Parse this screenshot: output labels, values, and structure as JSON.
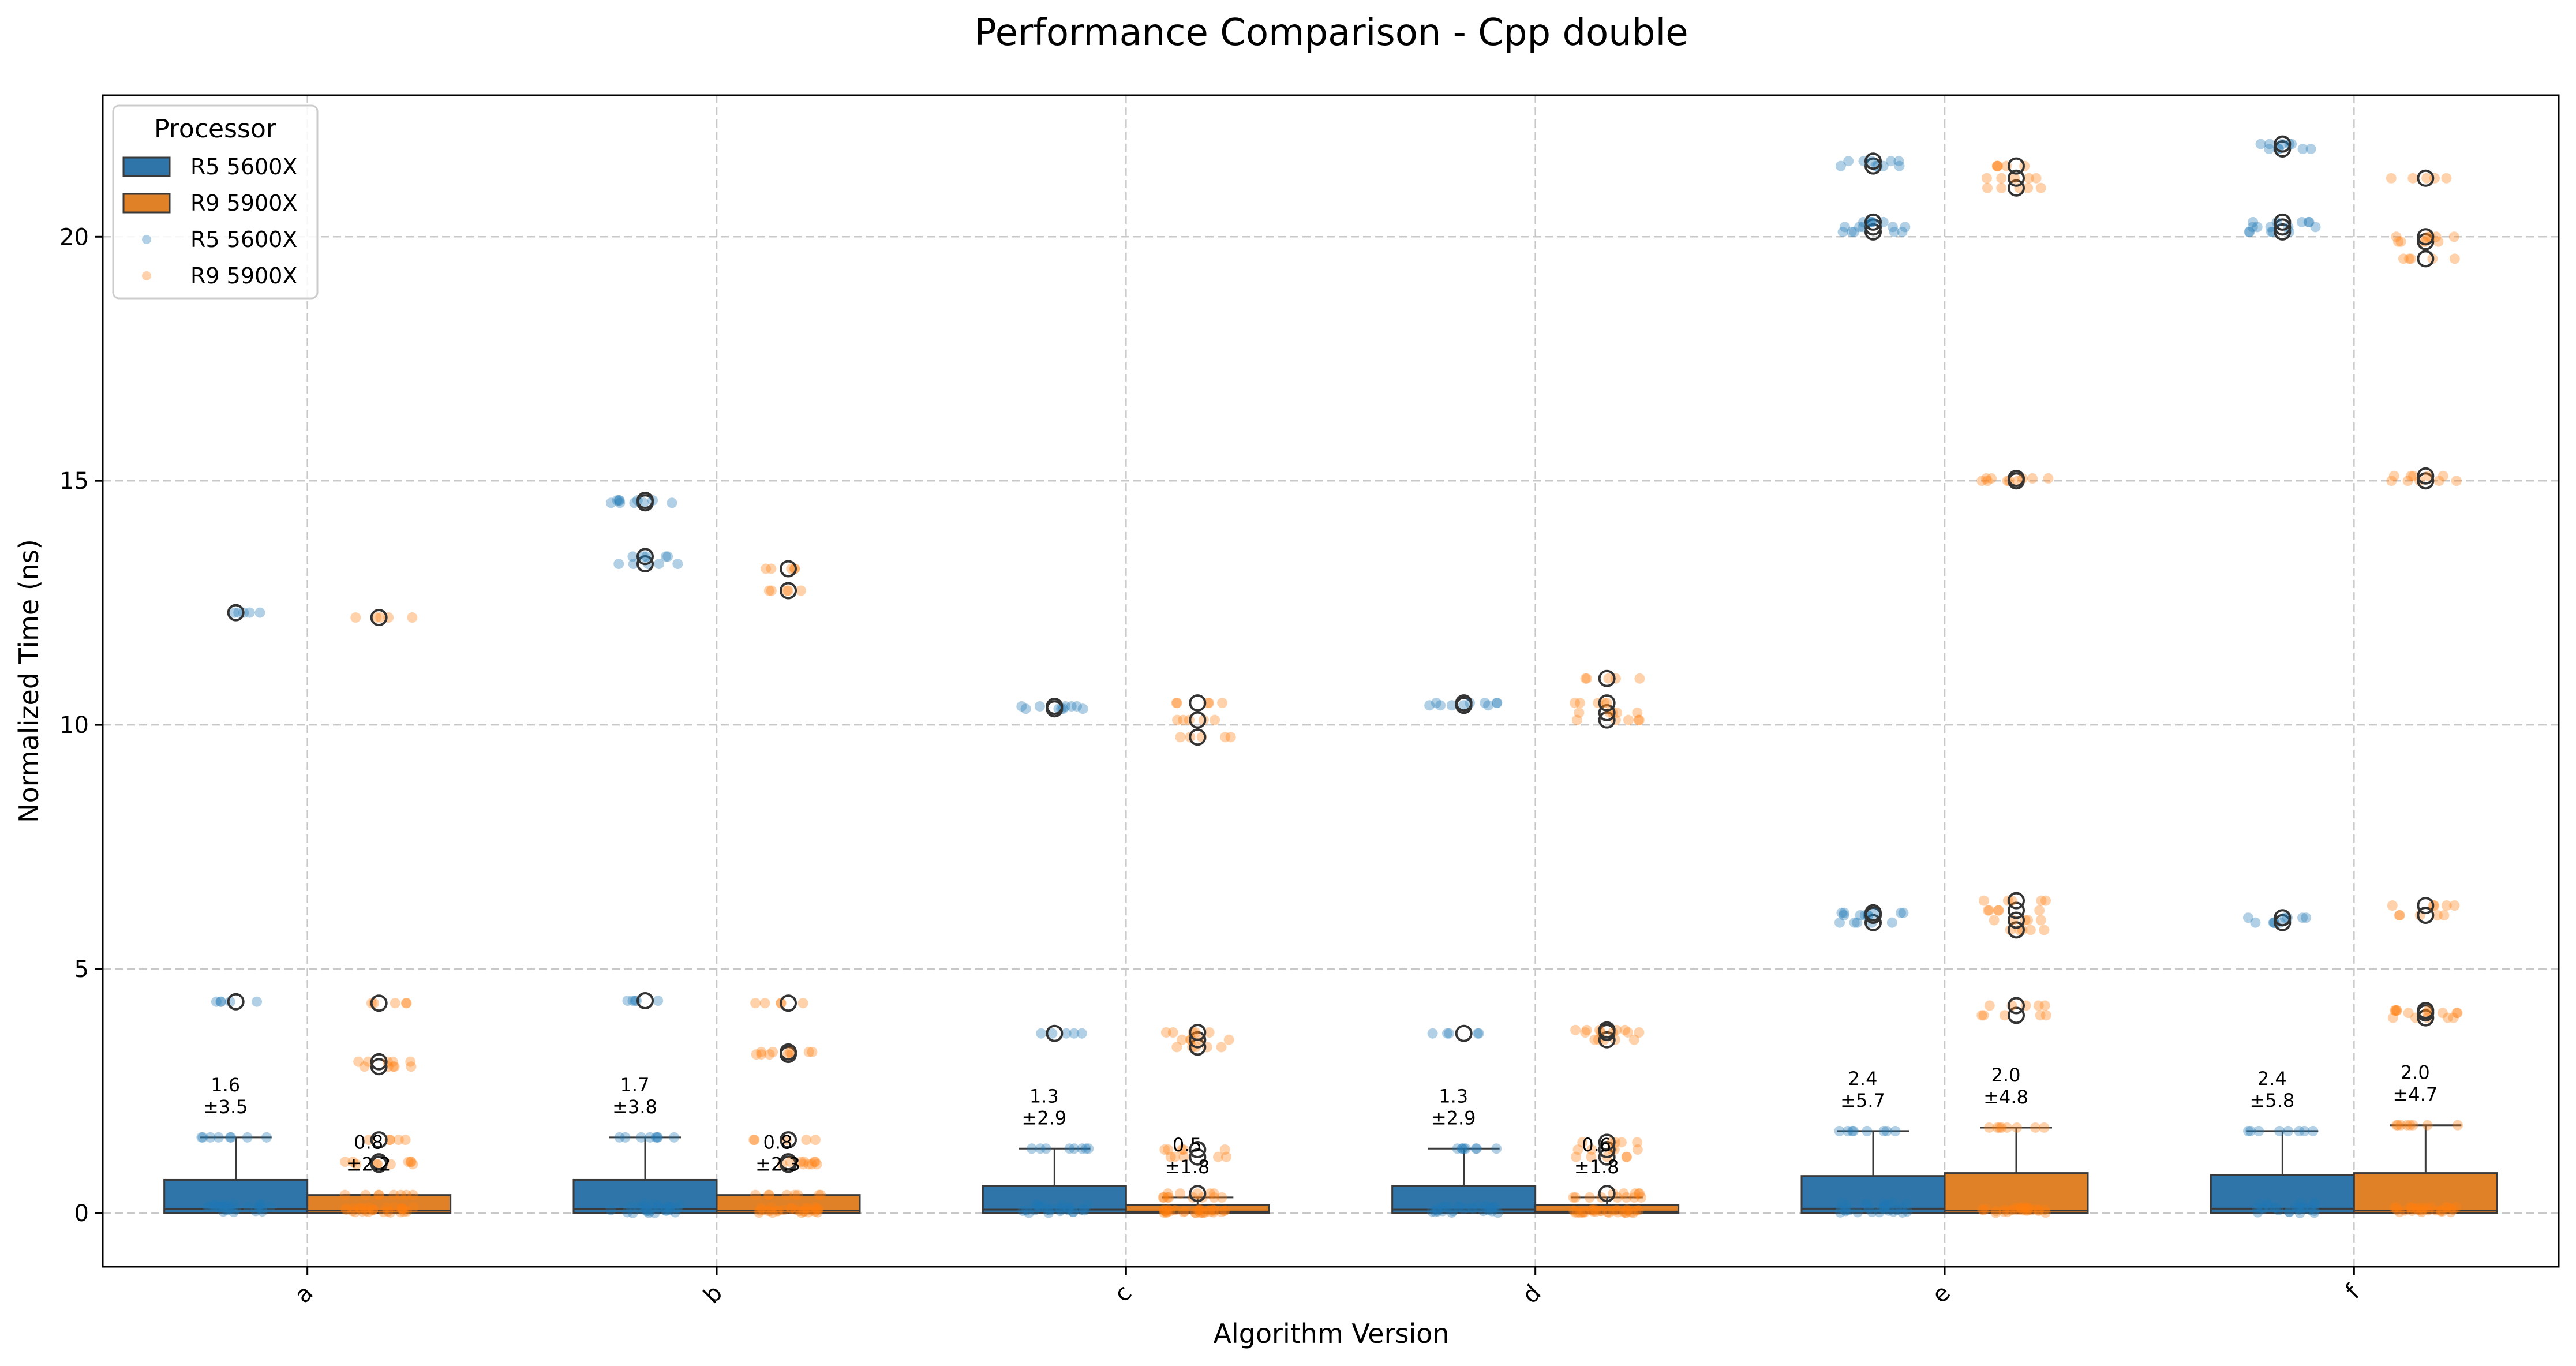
{
  "chart_data": {
    "type": "box",
    "title": "Performance Comparison - Cpp double",
    "xlabel": "Algorithm Version",
    "ylabel": "Normalized Time (ns)",
    "categories": [
      "a",
      "b",
      "c",
      "d",
      "e",
      "f"
    ],
    "ylim": [
      -1.1,
      22.9
    ],
    "yticks": [
      0,
      5,
      10,
      15,
      20
    ],
    "grid": true,
    "legend": {
      "title": "Processor",
      "placement": "top-left",
      "entries": [
        {
          "label": "R5 5600X",
          "kind": "box"
        },
        {
          "label": "R9 5900X",
          "kind": "box"
        },
        {
          "label": "R5 5600X",
          "kind": "point"
        },
        {
          "label": "R9 5900X",
          "kind": "point"
        }
      ]
    },
    "colors": {
      "R5 5600X": "#2f75a9",
      "R9 5900X": "#e08127",
      "R5 5600X_points": "#1f77b4",
      "R9 5900X_points": "#ff7f0e"
    },
    "series": [
      {
        "name": "R5 5600X",
        "boxes": [
          {
            "q1": 0.0,
            "median": 0.08,
            "q3": 0.68,
            "whisker_low": 0.0,
            "whisker_high": 1.55,
            "outliers": [
              4.33,
              12.3
            ]
          },
          {
            "q1": 0.0,
            "median": 0.08,
            "q3": 0.68,
            "whisker_low": 0.0,
            "whisker_high": 1.55,
            "outliers": [
              4.35,
              13.3,
              13.45,
              14.55,
              14.6
            ]
          },
          {
            "q1": 0.0,
            "median": 0.07,
            "q3": 0.56,
            "whisker_low": 0.0,
            "whisker_high": 1.32,
            "outliers": [
              3.68,
              10.33,
              10.38
            ]
          },
          {
            "q1": 0.0,
            "median": 0.07,
            "q3": 0.56,
            "whisker_low": 0.0,
            "whisker_high": 1.32,
            "outliers": [
              3.68,
              10.4,
              10.45
            ]
          },
          {
            "q1": 0.0,
            "median": 0.09,
            "q3": 0.76,
            "whisker_low": 0.0,
            "whisker_high": 1.68,
            "outliers": [
              5.95,
              6.1,
              6.15,
              20.1,
              20.2,
              20.3,
              21.45,
              21.55
            ]
          },
          {
            "q1": 0.0,
            "median": 0.09,
            "q3": 0.78,
            "whisker_low": 0.0,
            "whisker_high": 1.68,
            "outliers": [
              5.95,
              6.05,
              20.1,
              20.2,
              20.3,
              21.8,
              21.9
            ]
          }
        ],
        "labels": [
          {
            "mean": "1.6",
            "std": "±3.5"
          },
          {
            "mean": "1.7",
            "std": "±3.8"
          },
          {
            "mean": "1.3",
            "std": "±2.9"
          },
          {
            "mean": "1.3",
            "std": "±2.9"
          },
          {
            "mean": "2.4",
            "std": "±5.7"
          },
          {
            "mean": "2.4",
            "std": "±5.8"
          }
        ]
      },
      {
        "name": "R9 5900X",
        "boxes": [
          {
            "q1": 0.0,
            "median": 0.05,
            "q3": 0.37,
            "whisker_low": 0.0,
            "whisker_high": 0.37,
            "outliers": [
              1.0,
              1.05,
              1.5,
              3.0,
              3.1,
              4.3,
              12.2
            ]
          },
          {
            "q1": 0.0,
            "median": 0.05,
            "q3": 0.37,
            "whisker_low": 0.0,
            "whisker_high": 0.37,
            "outliers": [
              1.0,
              1.05,
              1.5,
              3.25,
              3.3,
              4.3,
              12.75,
              13.2
            ]
          },
          {
            "q1": 0.0,
            "median": 0.03,
            "q3": 0.16,
            "whisker_low": 0.0,
            "whisker_high": 0.32,
            "outliers": [
              0.4,
              1.15,
              1.3,
              3.4,
              3.55,
              3.7,
              9.75,
              10.1,
              10.45
            ]
          },
          {
            "q1": 0.0,
            "median": 0.03,
            "q3": 0.16,
            "whisker_low": 0.0,
            "whisker_high": 0.32,
            "outliers": [
              0.4,
              1.15,
              1.3,
              1.45,
              3.55,
              3.7,
              3.75,
              10.1,
              10.25,
              10.45,
              10.95
            ]
          },
          {
            "q1": 0.0,
            "median": 0.05,
            "q3": 0.82,
            "whisker_low": 0.0,
            "whisker_high": 1.75,
            "outliers": [
              4.05,
              4.25,
              5.8,
              6.0,
              6.2,
              6.4,
              15.0,
              15.05,
              21.0,
              21.2,
              21.45
            ]
          },
          {
            "q1": 0.0,
            "median": 0.05,
            "q3": 0.82,
            "whisker_low": 0.0,
            "whisker_high": 1.8,
            "outliers": [
              4.0,
              4.1,
              4.15,
              6.1,
              6.3,
              15.0,
              15.1,
              19.55,
              19.9,
              20.0,
              21.2
            ]
          }
        ],
        "labels": [
          {
            "mean": "0.8",
            "std": "±2.2"
          },
          {
            "mean": "0.8",
            "std": "±2.3"
          },
          {
            "mean": "0.5",
            "std": "±1.8"
          },
          {
            "mean": "0.6",
            "std": "±1.8"
          },
          {
            "mean": "2.0",
            "std": "±4.8"
          },
          {
            "mean": "2.0",
            "std": "±4.7"
          }
        ]
      }
    ]
  }
}
